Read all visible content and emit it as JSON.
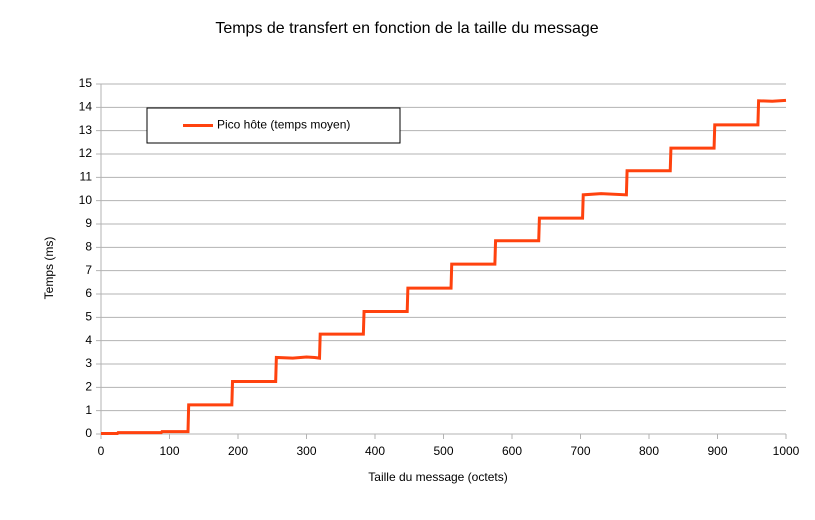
{
  "chart_data": {
    "type": "line",
    "title": "Temps de transfert en fonction de la taille du message",
    "x_label": "Taille du message (octets)",
    "y_label": "Temps (ms)",
    "x": [
      0,
      24,
      25,
      88,
      89,
      127,
      128,
      191,
      192,
      255,
      256,
      280,
      300,
      312,
      319,
      320,
      383,
      384,
      447,
      448,
      511,
      512,
      575,
      576,
      639,
      640,
      703,
      704,
      730,
      767,
      768,
      831,
      832,
      895,
      896,
      959,
      960,
      980,
      1000
    ],
    "series": [
      {
        "name": "Pico hôte (temps moyen)",
        "color": "#ff420e",
        "values": [
          0.02,
          0.02,
          0.06,
          0.06,
          0.1,
          0.1,
          1.25,
          1.25,
          2.25,
          2.25,
          3.28,
          3.25,
          3.3,
          3.28,
          3.25,
          4.28,
          4.28,
          5.25,
          5.25,
          6.25,
          6.25,
          7.28,
          7.28,
          8.28,
          8.28,
          9.25,
          9.25,
          10.25,
          10.3,
          10.25,
          11.28,
          11.28,
          12.25,
          12.25,
          13.25,
          13.25,
          14.28,
          14.26,
          14.3
        ]
      }
    ],
    "xlim": [
      0,
      1000
    ],
    "xticks": [
      0,
      100,
      200,
      300,
      400,
      500,
      600,
      700,
      800,
      900,
      1000
    ],
    "ylim": [
      0,
      15
    ],
    "yticks": [
      0,
      1,
      2,
      3,
      4,
      5,
      6,
      7,
      8,
      9,
      10,
      11,
      12,
      13,
      14,
      15
    ],
    "grid": true,
    "legend": "top-left"
  }
}
